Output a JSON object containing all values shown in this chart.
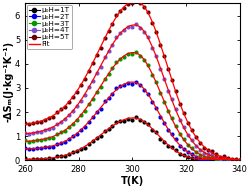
{
  "title": "",
  "xlabel": "T(K)",
  "ylabel": "-ΔSₘ(J·kg⁻¹K⁻¹)",
  "xlim": [
    260,
    340
  ],
  "ylim": [
    0,
    6.5
  ],
  "yticks": [
    0,
    1,
    2,
    3,
    4,
    5,
    6
  ],
  "xticks": [
    260,
    280,
    300,
    320,
    340
  ],
  "series": [
    {
      "label": "μ₀H=1T",
      "peak": 1.75,
      "T0": 300.5,
      "wL": 12.0,
      "wR": 9.0,
      "base": 0.03,
      "base_decay": 35,
      "color": "#000000"
    },
    {
      "label": "μ₀H=2T",
      "peak": 3.1,
      "T0": 300.5,
      "wL": 12.5,
      "wR": 9.5,
      "base": 0.45,
      "base_decay": 38,
      "color": "#0000ee"
    },
    {
      "label": "μ₀H=3T",
      "peak": 4.2,
      "T0": 301.0,
      "wL": 13.0,
      "wR": 10.0,
      "base": 0.75,
      "base_decay": 40,
      "color": "#009900"
    },
    {
      "label": "μ₀H=4T",
      "peak": 5.2,
      "T0": 301.5,
      "wL": 13.5,
      "wR": 10.5,
      "base": 1.05,
      "base_decay": 42,
      "color": "#7b4fcc"
    },
    {
      "label": "μ₀H=5T",
      "peak": 6.0,
      "T0": 302.0,
      "wL": 14.0,
      "wR": 11.0,
      "base": 1.42,
      "base_decay": 44,
      "color": "#6b0000"
    }
  ],
  "fit_color": "#ff0000",
  "bg_color": "#ffffff",
  "scatter_size": 9,
  "legend_fontsize": 5.2,
  "axis_fontsize": 7,
  "tick_fontsize": 6
}
